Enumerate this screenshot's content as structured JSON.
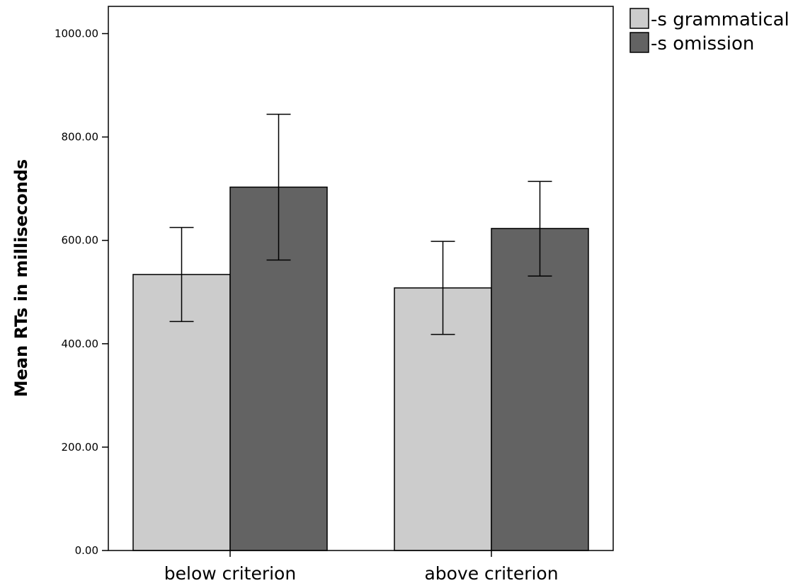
{
  "chart_data": {
    "type": "bar",
    "categories": [
      "below criterion",
      "above criterion"
    ],
    "series": [
      {
        "name": "-s grammatical",
        "color": "#cccccc",
        "values": [
          534,
          508
        ],
        "error_low": [
          443,
          418
        ],
        "error_high": [
          625,
          598
        ]
      },
      {
        "name": "-s omission",
        "color": "#636363",
        "values": [
          703,
          623
        ],
        "error_low": [
          562,
          531
        ],
        "error_high": [
          844,
          714
        ]
      }
    ],
    "yticks": [
      0,
      200,
      400,
      600,
      800,
      1000
    ],
    "ytick_labels": [
      "0.00",
      "200.00",
      "400.00",
      "600.00",
      "800.00",
      "1000.00"
    ],
    "ylim": [
      0,
      1052
    ],
    "xlabel": "",
    "ylabel": "Mean RTs in milliseconds",
    "legend_position": "top-right outside",
    "grid": false
  }
}
